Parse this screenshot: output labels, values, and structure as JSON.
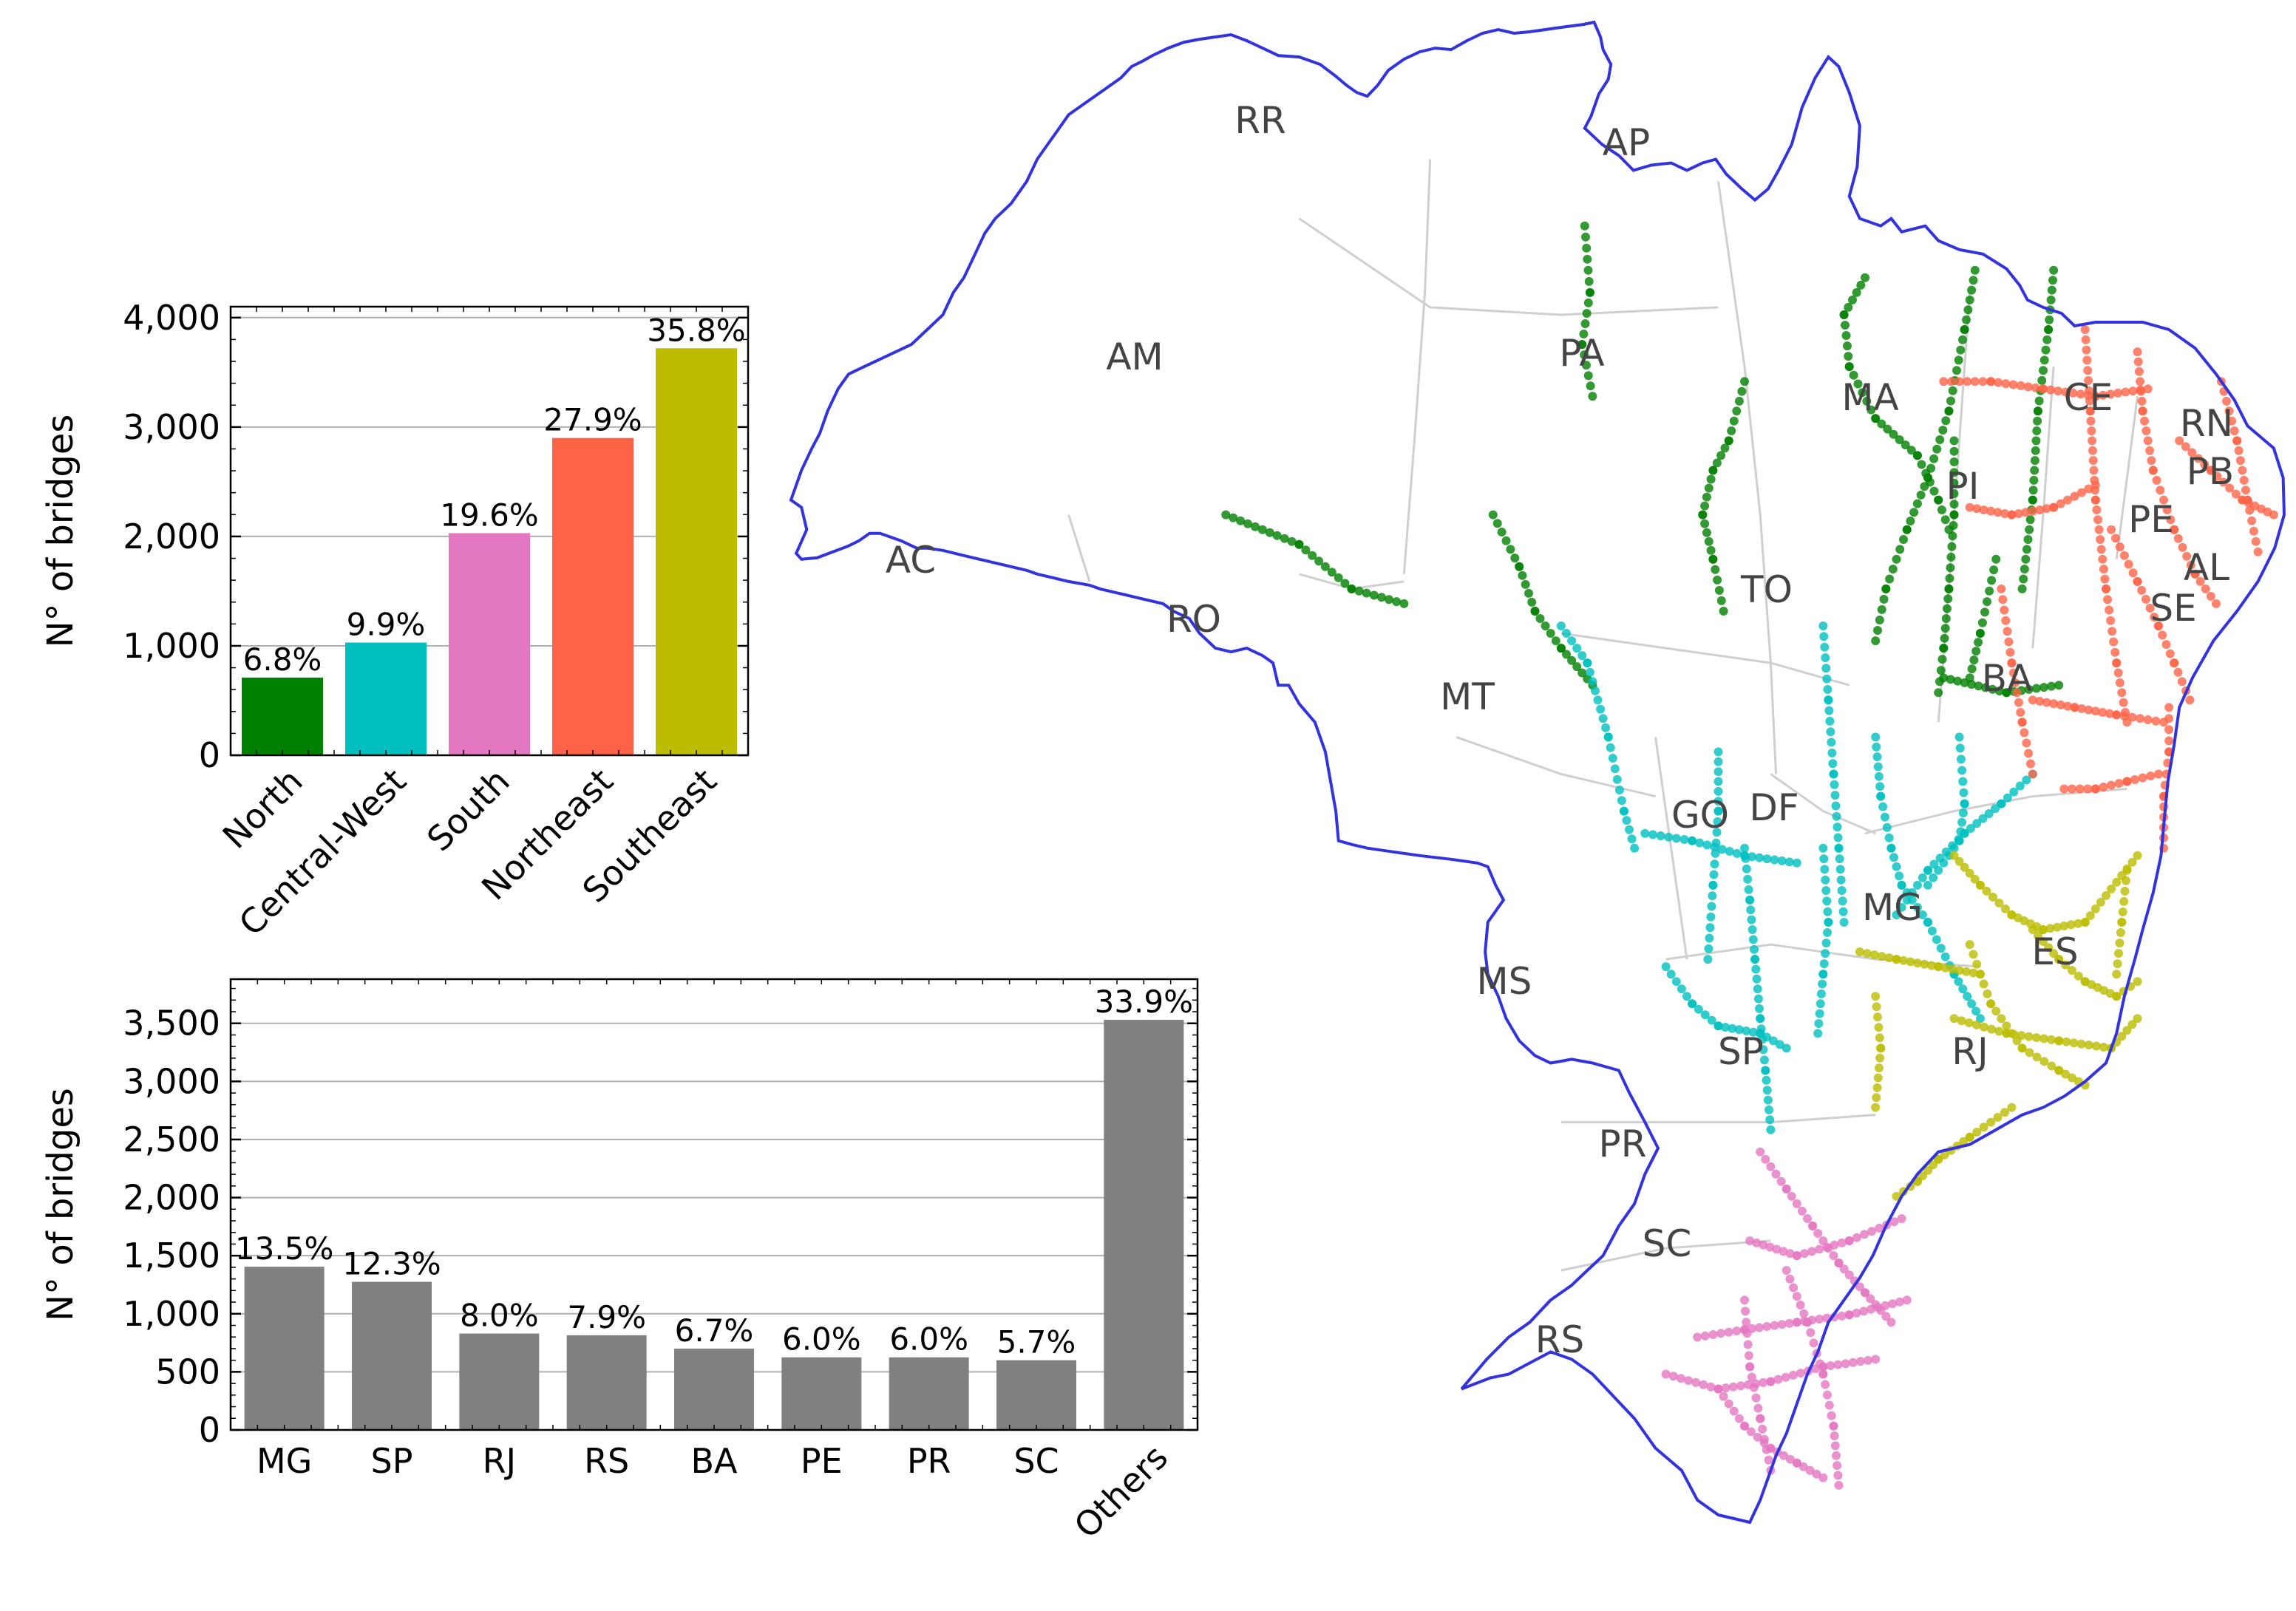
{
  "chart_data": [
    {
      "type": "bar",
      "title": "",
      "xlabel": "",
      "ylabel": "N° of bridges",
      "ylim": [
        0,
        4100
      ],
      "yticks": [
        0,
        1000,
        2000,
        3000,
        4000
      ],
      "ytick_labels": [
        "0",
        "1,000",
        "2,000",
        "3,000",
        "4,000"
      ],
      "grid": "horizontal",
      "categories": [
        "North",
        "Central-West",
        "South",
        "Northeast",
        "Southeast"
      ],
      "values": [
        710,
        1030,
        2030,
        2900,
        3720
      ],
      "labels": [
        "6.8%",
        "9.9%",
        "19.6%",
        "27.9%",
        "35.8%"
      ],
      "colors": [
        "#008000",
        "#00bfbf",
        "#e377c2",
        "#ff6347",
        "#bcbd00"
      ]
    },
    {
      "type": "bar",
      "title": "",
      "xlabel": "",
      "ylabel": "N° of bridges",
      "ylim": [
        0,
        3880
      ],
      "yticks": [
        0,
        500,
        1000,
        1500,
        2000,
        2500,
        3000,
        3500
      ],
      "ytick_labels": [
        "0",
        "500",
        "1,000",
        "1,500",
        "2,000",
        "2,500",
        "3,000",
        "3,500"
      ],
      "grid": "horizontal",
      "categories": [
        "MG",
        "SP",
        "RJ",
        "RS",
        "BA",
        "PE",
        "PR",
        "SC",
        "Others"
      ],
      "values": [
        1405,
        1275,
        830,
        815,
        700,
        625,
        625,
        600,
        3530
      ],
      "labels": [
        "13.5%",
        "12.3%",
        "8.0%",
        "7.9%",
        "6.7%",
        "6.0%",
        "6.0%",
        "5.7%",
        "33.9%"
      ],
      "colors": [
        "#808080"
      ]
    }
  ],
  "map": {
    "state_labels": [
      "RR",
      "AP",
      "AM",
      "PA",
      "MA",
      "CE",
      "RN",
      "PB",
      "PI",
      "PE",
      "AL",
      "SE",
      "AC",
      "RO",
      "TO",
      "MT",
      "BA",
      "GO",
      "DF",
      "MG",
      "ES",
      "MS",
      "SP",
      "RJ",
      "PR",
      "SC",
      "RS"
    ],
    "border_color": "#3333dd",
    "region_colors": {
      "North": "#008000",
      "Central-West": "#00bfbf",
      "South": "#e377c2",
      "Northeast": "#ff6347",
      "Southeast": "#bcbd00"
    }
  }
}
